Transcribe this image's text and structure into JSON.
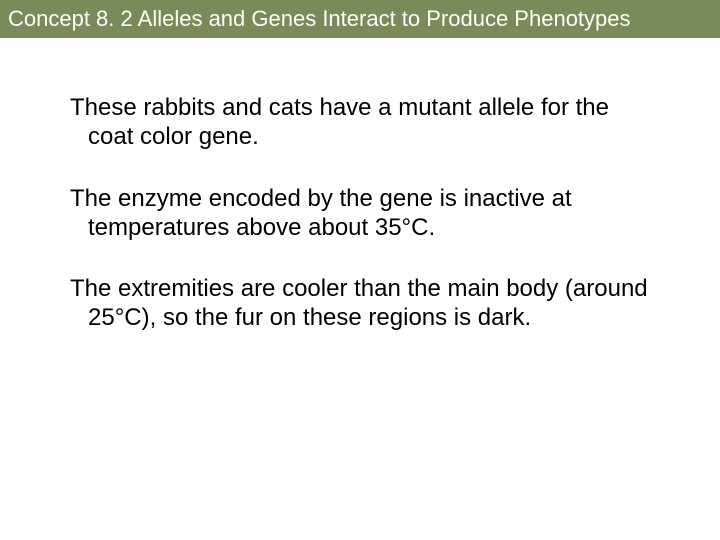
{
  "header": {
    "title": "Concept 8. 2 Alleles and Genes Interact to Produce Phenotypes",
    "background_color": "#7a8a58",
    "text_color": "#ffffff",
    "font_size": 22
  },
  "body": {
    "background_color": "#ffffff",
    "text_color": "#000000",
    "font_size": 24,
    "paragraphs": [
      "These rabbits and cats have a mutant allele for the coat color gene.",
      "The enzyme encoded by the gene is inactive at temperatures above about 35°C.",
      "The extremities are cooler than the main body (around 25°C), so the fur on these regions is dark."
    ]
  }
}
